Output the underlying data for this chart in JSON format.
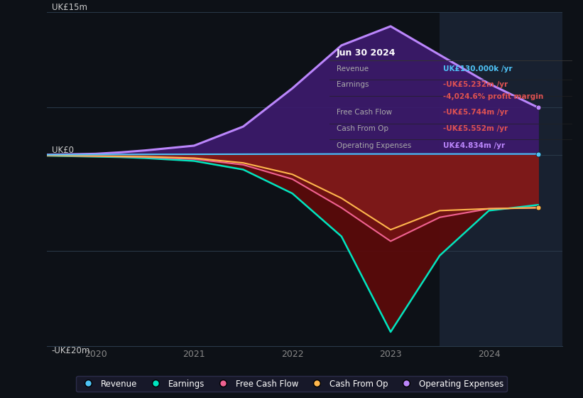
{
  "bg_color": "#0d1117",
  "plot_bg_color": "#0d1117",
  "highlight_bg": "#1a2535",
  "grid_color": "#2a3a4a",
  "ylim": [
    -20,
    15
  ],
  "xlim": [
    2019.5,
    2024.75
  ],
  "xticks": [
    2020,
    2021,
    2022,
    2023,
    2024
  ],
  "tooltip_title": "Jun 30 2024",
  "tooltip_items": [
    {
      "label": "Revenue",
      "value": "UK£130.000k /yr",
      "value_color": "#4fc3f7"
    },
    {
      "label": "Earnings",
      "value": "-UK£5.232m /yr",
      "value_color": "#e05252"
    },
    {
      "label": "",
      "value": "-4,024.6% profit margin",
      "value_color": "#e05252"
    },
    {
      "label": "Free Cash Flow",
      "value": "-UK£5.744m /yr",
      "value_color": "#e05252"
    },
    {
      "label": "Cash From Op",
      "value": "-UK£5.552m /yr",
      "value_color": "#e05252"
    },
    {
      "label": "Operating Expenses",
      "value": "UK£4.834m /yr",
      "value_color": "#bb86fc"
    }
  ],
  "series": {
    "revenue": {
      "color": "#4fc3f7",
      "x": [
        2019.5,
        2020.0,
        2020.25,
        2020.5,
        2021.0,
        2021.5,
        2022.0,
        2022.5,
        2023.0,
        2023.5,
        2024.0,
        2024.5
      ],
      "y": [
        0.05,
        0.07,
        0.08,
        0.09,
        0.1,
        0.11,
        0.12,
        0.13,
        0.13,
        0.13,
        0.13,
        0.13
      ]
    },
    "earnings": {
      "color": "#00e5c0",
      "x": [
        2019.5,
        2020.0,
        2020.25,
        2020.5,
        2021.0,
        2021.5,
        2022.0,
        2022.5,
        2023.0,
        2023.5,
        2024.0,
        2024.5
      ],
      "y": [
        -0.05,
        -0.15,
        -0.2,
        -0.3,
        -0.6,
        -1.5,
        -4.0,
        -8.5,
        -18.5,
        -10.5,
        -5.8,
        -5.2
      ]
    },
    "free_cash_flow": {
      "color": "#f06292",
      "x": [
        2019.5,
        2020.0,
        2020.25,
        2020.5,
        2021.0,
        2021.5,
        2022.0,
        2022.5,
        2023.0,
        2023.5,
        2024.0,
        2024.5
      ],
      "y": [
        -0.03,
        -0.1,
        -0.15,
        -0.2,
        -0.4,
        -1.0,
        -2.5,
        -5.5,
        -9.0,
        -6.5,
        -5.6,
        -5.5
      ]
    },
    "cash_from_op": {
      "color": "#ffb74d",
      "x": [
        2019.5,
        2020.0,
        2020.25,
        2020.5,
        2021.0,
        2021.5,
        2022.0,
        2022.5,
        2023.0,
        2023.5,
        2024.0,
        2024.5
      ],
      "y": [
        -0.02,
        -0.08,
        -0.12,
        -0.15,
        -0.3,
        -0.8,
        -2.0,
        -4.5,
        -7.8,
        -5.8,
        -5.6,
        -5.5
      ]
    },
    "operating_expenses": {
      "color": "#bb86fc",
      "x": [
        2019.5,
        2020.0,
        2020.25,
        2020.5,
        2021.0,
        2021.5,
        2022.0,
        2022.5,
        2023.0,
        2023.5,
        2024.0,
        2024.5
      ],
      "y": [
        0.05,
        0.15,
        0.3,
        0.5,
        1.0,
        3.0,
        7.0,
        11.5,
        13.5,
        10.5,
        7.5,
        5.0
      ]
    }
  },
  "vertical_line_x": 2023.5,
  "legend_items": [
    {
      "label": "Revenue",
      "color": "#4fc3f7"
    },
    {
      "label": "Earnings",
      "color": "#00e5c0"
    },
    {
      "label": "Free Cash Flow",
      "color": "#f06292"
    },
    {
      "label": "Cash From Op",
      "color": "#ffb74d"
    },
    {
      "label": "Operating Expenses",
      "color": "#bb86fc"
    }
  ]
}
